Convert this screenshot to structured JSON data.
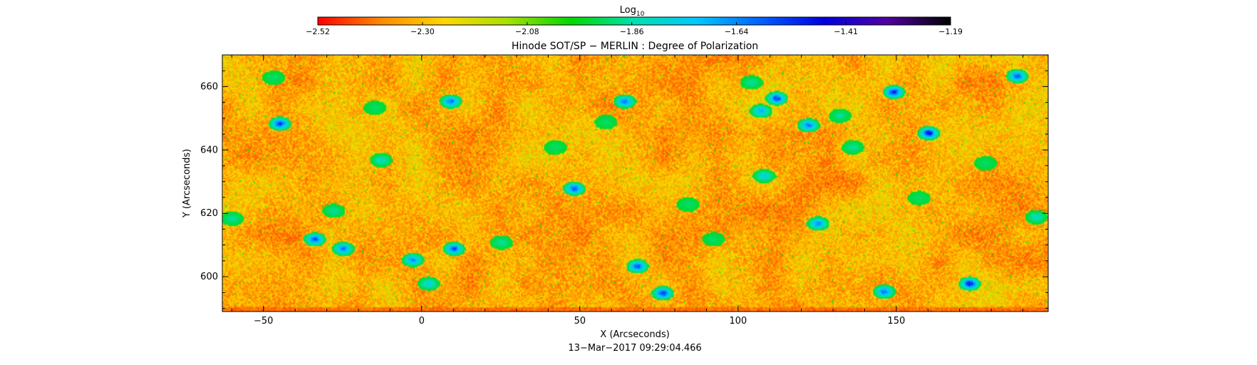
{
  "chart_data": {
    "type": "heatmap",
    "title": "Hinode SOT/SP − MERLIN : Degree of Polarization",
    "xlabel": "X (Arcseconds)",
    "ylabel": "Y (Arcseconds)",
    "timestamp": "13−Mar−2017 09:29:04.466",
    "xlim": [
      -63,
      198
    ],
    "ylim": [
      589,
      670
    ],
    "x_ticks": [
      -50,
      0,
      50,
      100,
      150
    ],
    "x_tick_labels": [
      "−50",
      "0",
      "50",
      "100",
      "150"
    ],
    "y_ticks": [
      600,
      620,
      640,
      660
    ],
    "y_tick_labels": [
      "600",
      "620",
      "640",
      "660"
    ],
    "colorbar": {
      "label_base": "Log",
      "label_sub": "10",
      "range": [
        -2.52,
        -1.19
      ],
      "ticks": [
        -2.52,
        -2.3,
        -2.08,
        -1.86,
        -1.64,
        -1.41,
        -1.19
      ],
      "tick_labels": [
        "−2.52",
        "−2.30",
        "−2.08",
        "−1.86",
        "−1.64",
        "−1.41",
        "−1.19"
      ],
      "colormap": [
        "#ff0000",
        "#ff8a00",
        "#ffd700",
        "#a8e000",
        "#00d800",
        "#00e0b0",
        "#00c8ff",
        "#0060ff",
        "#0000e0",
        "#5000a0",
        "#000000"
      ]
    },
    "field": {
      "background_range": [
        -2.45,
        -2.12
      ],
      "features": [
        {
          "x": -45,
          "y": 648.5,
          "value": -1.45
        },
        {
          "x": -34,
          "y": 612,
          "value": -1.5
        },
        {
          "x": -28,
          "y": 621,
          "value": -1.85
        },
        {
          "x": -15,
          "y": 653.5,
          "value": -1.9
        },
        {
          "x": -25,
          "y": 609,
          "value": -1.55
        },
        {
          "x": -13,
          "y": 637,
          "value": -1.8
        },
        {
          "x": -3,
          "y": 605.5,
          "value": -1.6
        },
        {
          "x": 2,
          "y": 598,
          "value": -1.75
        },
        {
          "x": 10,
          "y": 609,
          "value": -1.5
        },
        {
          "x": 9,
          "y": 655.5,
          "value": -1.55
        },
        {
          "x": 25,
          "y": 611,
          "value": -1.85
        },
        {
          "x": 48,
          "y": 628,
          "value": -1.5
        },
        {
          "x": 58,
          "y": 649,
          "value": -1.9
        },
        {
          "x": 64,
          "y": 655.5,
          "value": -1.55
        },
        {
          "x": 68,
          "y": 603.5,
          "value": -1.5
        },
        {
          "x": 76,
          "y": 595,
          "value": -1.45
        },
        {
          "x": 84,
          "y": 623,
          "value": -1.9
        },
        {
          "x": 104,
          "y": 661.5,
          "value": -1.85
        },
        {
          "x": 108,
          "y": 632,
          "value": -1.75
        },
        {
          "x": 112,
          "y": 656.5,
          "value": -1.45
        },
        {
          "x": 107,
          "y": 652.5,
          "value": -1.65
        },
        {
          "x": 122,
          "y": 648,
          "value": -1.55
        },
        {
          "x": 125,
          "y": 617,
          "value": -1.6
        },
        {
          "x": 132,
          "y": 651,
          "value": -1.85
        },
        {
          "x": 136,
          "y": 641,
          "value": -1.85
        },
        {
          "x": 146,
          "y": 595.5,
          "value": -1.55
        },
        {
          "x": 149,
          "y": 658.5,
          "value": -1.4
        },
        {
          "x": 160,
          "y": 645.5,
          "value": -1.4
        },
        {
          "x": 173,
          "y": 598,
          "value": -1.4
        },
        {
          "x": 188,
          "y": 663.5,
          "value": -1.5
        },
        {
          "x": 194,
          "y": 619,
          "value": -1.8
        },
        {
          "x": -60,
          "y": 618.5,
          "value": -1.85
        },
        {
          "x": -47,
          "y": 663,
          "value": -1.9
        },
        {
          "x": 42,
          "y": 641,
          "value": -1.9
        },
        {
          "x": 92,
          "y": 612,
          "value": -1.9
        },
        {
          "x": 157,
          "y": 625,
          "value": -1.9
        },
        {
          "x": 178,
          "y": 636,
          "value": -1.9
        }
      ]
    }
  }
}
